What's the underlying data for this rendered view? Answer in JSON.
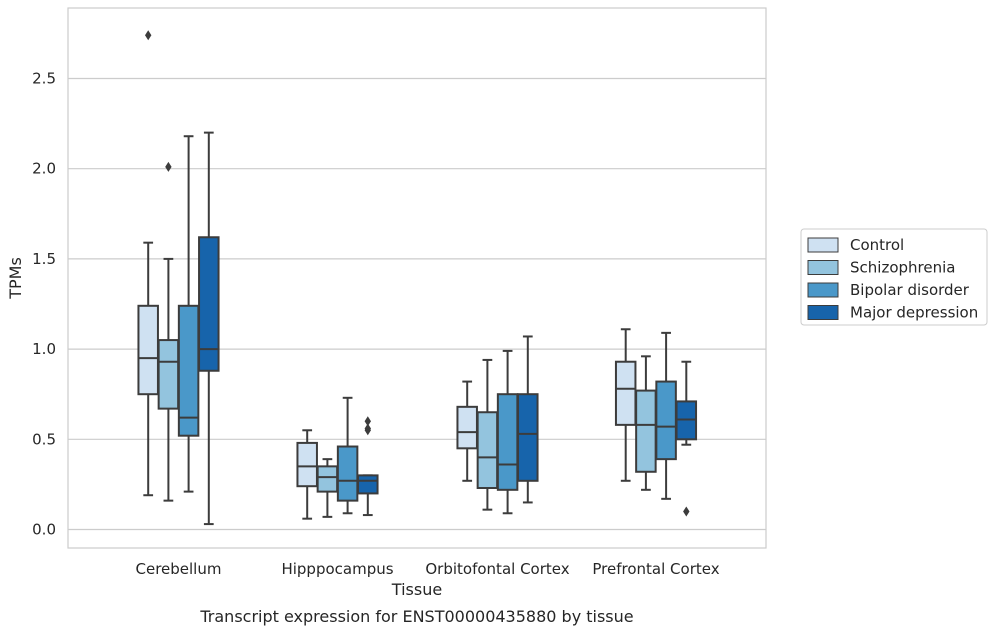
{
  "chart_data": {
    "type": "box",
    "xlabel": "Tissue",
    "ylabel": "TPMs",
    "caption": "Transcript expression for ENST00000435880 by tissue",
    "ylim": [
      -0.1,
      2.9
    ],
    "yticks": [
      "0.0",
      "0.5",
      "1.0",
      "1.5",
      "2.0",
      "2.5"
    ],
    "grid": "horizontal",
    "legend_position": "right",
    "categories": [
      "Cerebellum",
      "Hipppocampus",
      "Orbitofontal Cortex",
      "Prefrontal Cortex"
    ],
    "series": [
      {
        "name": "Control",
        "color": "#cfe1f2",
        "boxes": [
          {
            "whisker_low": 0.19,
            "q1": 0.75,
            "median": 0.95,
            "q3": 1.24,
            "whisker_high": 1.59,
            "outliers": [
              2.74
            ]
          },
          {
            "whisker_low": 0.06,
            "q1": 0.24,
            "median": 0.35,
            "q3": 0.48,
            "whisker_high": 0.55,
            "outliers": []
          },
          {
            "whisker_low": 0.27,
            "q1": 0.45,
            "median": 0.54,
            "q3": 0.68,
            "whisker_high": 0.82,
            "outliers": []
          },
          {
            "whisker_low": 0.27,
            "q1": 0.58,
            "median": 0.78,
            "q3": 0.93,
            "whisker_high": 1.11,
            "outliers": []
          }
        ]
      },
      {
        "name": "Schizophrenia",
        "color": "#93c4de",
        "boxes": [
          {
            "whisker_low": 0.16,
            "q1": 0.67,
            "median": 0.93,
            "q3": 1.05,
            "whisker_high": 1.5,
            "outliers": [
              2.01
            ]
          },
          {
            "whisker_low": 0.07,
            "q1": 0.21,
            "median": 0.29,
            "q3": 0.35,
            "whisker_high": 0.39,
            "outliers": []
          },
          {
            "whisker_low": 0.11,
            "q1": 0.23,
            "median": 0.4,
            "q3": 0.65,
            "whisker_high": 0.94,
            "outliers": []
          },
          {
            "whisker_low": 0.22,
            "q1": 0.32,
            "median": 0.58,
            "q3": 0.77,
            "whisker_high": 0.96,
            "outliers": []
          }
        ]
      },
      {
        "name": "Bipolar disorder",
        "color": "#4a98c9",
        "boxes": [
          {
            "whisker_low": 0.21,
            "q1": 0.52,
            "median": 0.62,
            "q3": 1.24,
            "whisker_high": 2.18,
            "outliers": []
          },
          {
            "whisker_low": 0.09,
            "q1": 0.16,
            "median": 0.27,
            "q3": 0.46,
            "whisker_high": 0.73,
            "outliers": []
          },
          {
            "whisker_low": 0.09,
            "q1": 0.22,
            "median": 0.36,
            "q3": 0.75,
            "whisker_high": 0.99,
            "outliers": []
          },
          {
            "whisker_low": 0.17,
            "q1": 0.39,
            "median": 0.57,
            "q3": 0.82,
            "whisker_high": 1.09,
            "outliers": []
          }
        ]
      },
      {
        "name": "Major depression",
        "color": "#1764ab",
        "boxes": [
          {
            "whisker_low": 0.03,
            "q1": 0.88,
            "median": 1.0,
            "q3": 1.62,
            "whisker_high": 2.2,
            "outliers": []
          },
          {
            "whisker_low": 0.08,
            "q1": 0.2,
            "median": 0.27,
            "q3": 0.3,
            "whisker_high": 0.3,
            "outliers": [
              0.55,
              0.56,
              0.6
            ]
          },
          {
            "whisker_low": 0.15,
            "q1": 0.27,
            "median": 0.53,
            "q3": 0.75,
            "whisker_high": 1.07,
            "outliers": []
          },
          {
            "whisker_low": 0.47,
            "q1": 0.5,
            "median": 0.61,
            "q3": 0.71,
            "whisker_high": 0.93,
            "outliers": [
              0.1
            ]
          }
        ]
      }
    ]
  }
}
